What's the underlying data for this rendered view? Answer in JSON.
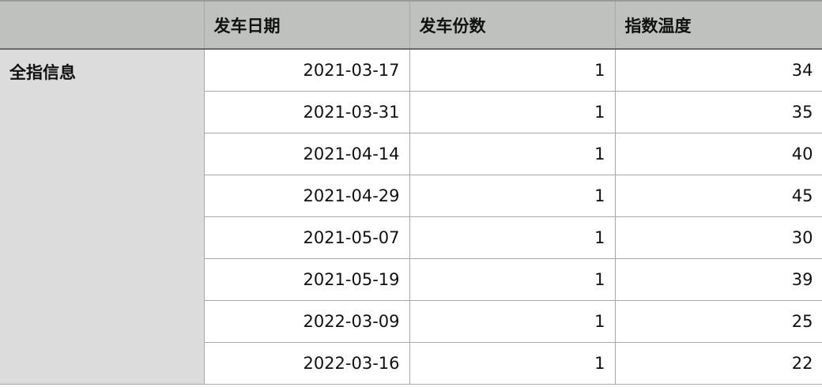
{
  "columns": [
    "",
    "发车日期",
    "发车份数",
    "指数温度"
  ],
  "group_label": "全指信息",
  "rows": [
    {
      "date": "2021-03-17",
      "count": "1",
      "temp": "34"
    },
    {
      "date": "2021-03-31",
      "count": "1",
      "temp": "35"
    },
    {
      "date": "2021-04-14",
      "count": "1",
      "temp": "40"
    },
    {
      "date": "2021-04-29",
      "count": "1",
      "temp": "45"
    },
    {
      "date": "2021-05-07",
      "count": "1",
      "temp": "30"
    },
    {
      "date": "2021-05-19",
      "count": "1",
      "temp": "39"
    },
    {
      "date": "2022-03-09",
      "count": "1",
      "temp": "25"
    },
    {
      "date": "2022-03-16",
      "count": "1",
      "temp": "22"
    }
  ],
  "colors": {
    "header_bg": "#bfc1bf",
    "group_bg": "#dcdcdc"
  }
}
